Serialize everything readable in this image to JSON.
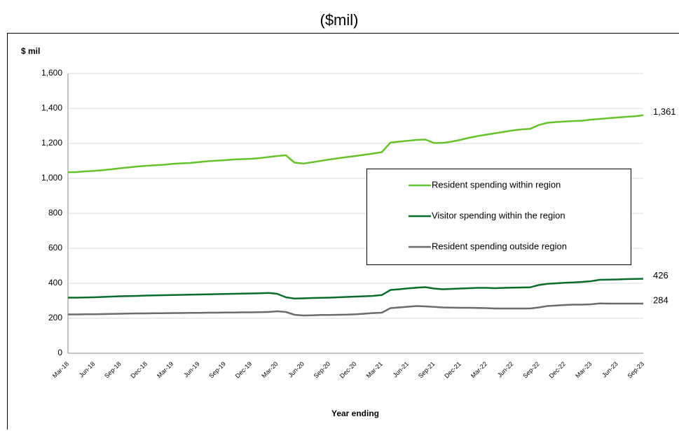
{
  "chart_data": {
    "type": "line",
    "title": "($mil)",
    "y_label": "$ mil",
    "x_label": "Year ending",
    "categories": [
      "Mar-18",
      null,
      null,
      "Jun-18",
      null,
      null,
      "Sep-18",
      null,
      null,
      "Dec-18",
      null,
      null,
      "Mar-19",
      null,
      null,
      "Jun-19",
      null,
      null,
      "Sep-19",
      null,
      null,
      "Dec-19",
      null,
      null,
      "Mar-20",
      null,
      null,
      "Jun-20",
      null,
      null,
      "Sep-20",
      null,
      null,
      "Dec-20",
      null,
      null,
      "Mar-21",
      null,
      null,
      "Jun-21",
      null,
      null,
      "Sep-21",
      null,
      null,
      "Dec-21",
      null,
      null,
      "Mar-22",
      null,
      null,
      "Jun-22",
      null,
      null,
      "Sep-22",
      null,
      null,
      "Dec-22",
      null,
      null,
      "Mar-23",
      null,
      null,
      "Jun-23",
      null,
      null,
      "Sep-23"
    ],
    "series": [
      {
        "name": "Resident spending within region",
        "color": "#66c22a",
        "values": [
          1035,
          1036,
          1040,
          1043,
          1047,
          1052,
          1058,
          1063,
          1068,
          1072,
          1075,
          1078,
          1083,
          1086,
          1088,
          1093,
          1098,
          1101,
          1104,
          1108,
          1110,
          1112,
          1116,
          1122,
          1128,
          1132,
          1090,
          1085,
          1092,
          1100,
          1108,
          1115,
          1122,
          1128,
          1135,
          1142,
          1150,
          1205,
          1210,
          1215,
          1220,
          1222,
          1202,
          1203,
          1210,
          1220,
          1232,
          1242,
          1250,
          1258,
          1266,
          1274,
          1280,
          1283,
          1305,
          1318,
          1322,
          1325,
          1328,
          1330,
          1336,
          1340,
          1344,
          1348,
          1352,
          1355,
          1361
        ],
        "value_labels": [
          null,
          null,
          null,
          null,
          null,
          null,
          null,
          null,
          null,
          null,
          null,
          null,
          null,
          null,
          null,
          null,
          null,
          null,
          null,
          null,
          null,
          null,
          null,
          null,
          null,
          null,
          null,
          null,
          null,
          null,
          null,
          null,
          null,
          null,
          null,
          null,
          null,
          null,
          null,
          null,
          null,
          null,
          null,
          null,
          null,
          null,
          null,
          null,
          null,
          null,
          null,
          null,
          null,
          null,
          null,
          null,
          null,
          null,
          null,
          null,
          null,
          null,
          null,
          null,
          null,
          null,
          "1,361"
        ]
      },
      {
        "name": "Visitor spending within the region",
        "color": "#0b6b2b",
        "values": [
          318,
          318,
          319,
          320,
          322,
          324,
          326,
          327,
          328,
          330,
          331,
          332,
          333,
          334,
          335,
          336,
          337,
          338,
          339,
          340,
          341,
          342,
          343,
          345,
          340,
          320,
          313,
          314,
          316,
          317,
          318,
          320,
          322,
          324,
          326,
          328,
          333,
          362,
          366,
          371,
          375,
          378,
          370,
          366,
          368,
          370,
          372,
          374,
          374,
          372,
          374,
          375,
          376,
          377,
          390,
          397,
          400,
          403,
          405,
          408,
          412,
          420,
          421,
          422,
          424,
          425,
          426
        ],
        "value_labels": [
          null,
          null,
          null,
          null,
          null,
          null,
          null,
          null,
          null,
          null,
          null,
          null,
          null,
          null,
          null,
          null,
          null,
          null,
          null,
          null,
          null,
          null,
          null,
          null,
          null,
          null,
          null,
          null,
          null,
          null,
          null,
          null,
          null,
          null,
          null,
          null,
          null,
          null,
          null,
          null,
          null,
          null,
          null,
          null,
          null,
          null,
          null,
          null,
          null,
          null,
          null,
          null,
          null,
          null,
          null,
          null,
          null,
          null,
          null,
          null,
          null,
          null,
          null,
          null,
          null,
          null,
          "426"
        ]
      },
      {
        "name": "Resident spending outside region",
        "color": "#6b6b6b",
        "values": [
          222,
          222,
          223,
          223,
          224,
          225,
          226,
          227,
          228,
          228,
          229,
          229,
          230,
          230,
          231,
          231,
          232,
          232,
          233,
          233,
          234,
          234,
          235,
          236,
          240,
          236,
          220,
          216,
          217,
          219,
          219,
          220,
          221,
          223,
          226,
          230,
          232,
          258,
          262,
          266,
          270,
          268,
          265,
          262,
          261,
          260,
          260,
          259,
          258,
          256,
          256,
          256,
          256,
          256,
          262,
          270,
          273,
          276,
          278,
          278,
          280,
          285,
          284,
          284,
          284,
          284,
          284
        ],
        "value_labels": [
          null,
          null,
          null,
          null,
          null,
          null,
          null,
          null,
          null,
          null,
          null,
          null,
          null,
          null,
          null,
          null,
          null,
          null,
          null,
          null,
          null,
          null,
          null,
          null,
          null,
          null,
          null,
          null,
          null,
          null,
          null,
          null,
          null,
          null,
          null,
          null,
          null,
          null,
          null,
          null,
          null,
          null,
          null,
          null,
          null,
          null,
          null,
          null,
          null,
          null,
          null,
          null,
          null,
          null,
          null,
          null,
          null,
          null,
          null,
          null,
          null,
          null,
          null,
          null,
          null,
          null,
          "284"
        ]
      }
    ],
    "ylim": [
      0,
      1600
    ],
    "yticks": [
      0,
      200,
      400,
      600,
      800,
      {
        "value": 1000,
        "label": "1,000"
      },
      {
        "value": 1200,
        "label": "1,200"
      },
      {
        "value": 1400,
        "label": "1,400"
      },
      {
        "value": 1600,
        "label": "1,600"
      }
    ],
    "grid": true,
    "legend": "center-right"
  }
}
